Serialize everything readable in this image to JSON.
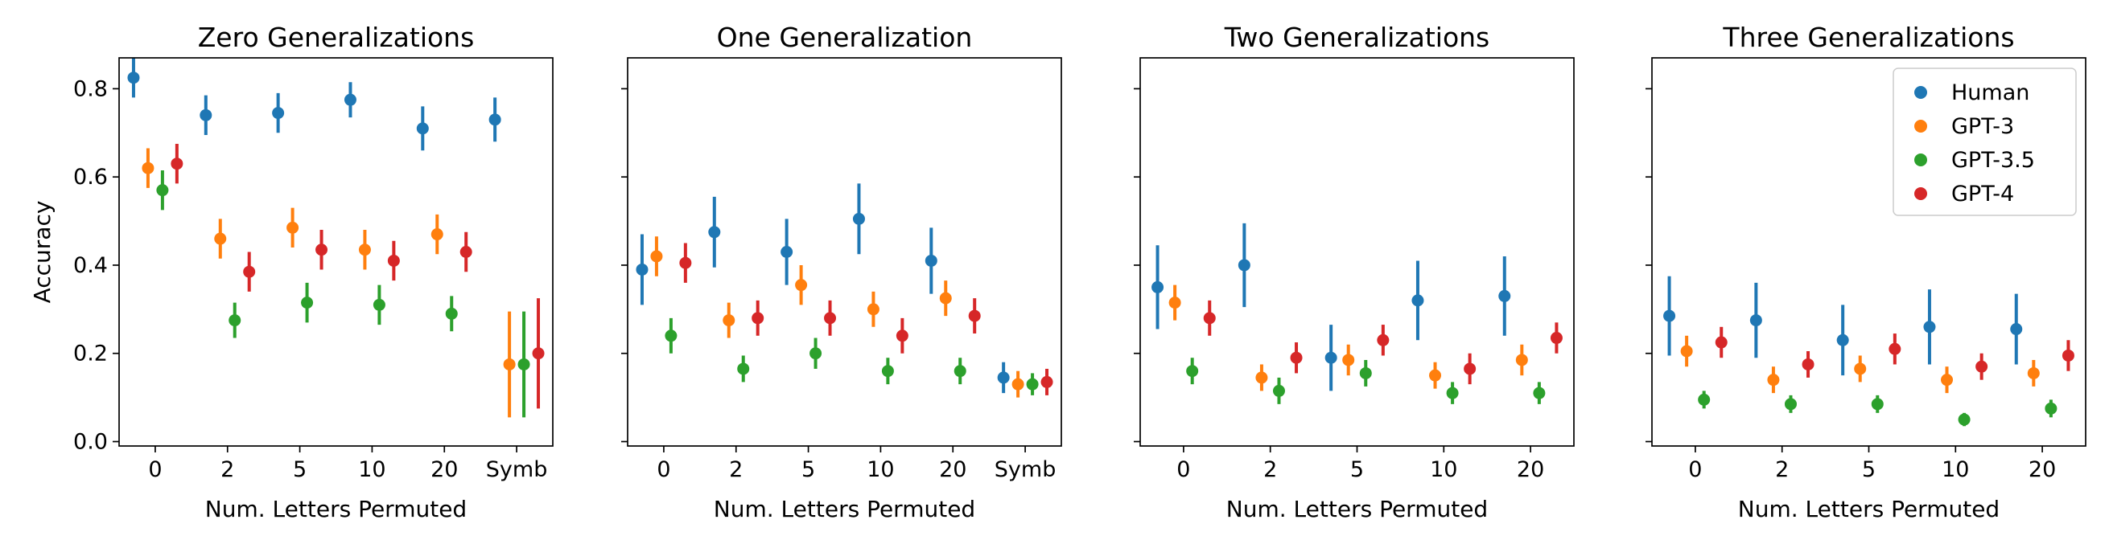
{
  "chart_data": [
    {
      "type": "scatter",
      "title": "Zero Generalizations",
      "xlabel": "Num. Letters Permuted",
      "ylabel": "Accuracy",
      "categories": [
        "0",
        "2",
        "5",
        "10",
        "20",
        "Symb"
      ],
      "ylim": [
        -0.01,
        0.87
      ],
      "yticks": [
        "0.0",
        "0.2",
        "0.4",
        "0.6",
        "0.8"
      ],
      "series": [
        {
          "name": "Human",
          "color": "#1f77b4",
          "values": [
            0.825,
            0.74,
            0.745,
            0.775,
            0.71,
            0.73
          ],
          "err": [
            0.045,
            0.045,
            0.045,
            0.04,
            0.05,
            0.05
          ]
        },
        {
          "name": "GPT-3",
          "color": "#ff7f0e",
          "values": [
            0.62,
            0.46,
            0.485,
            0.435,
            0.47,
            0.175
          ],
          "err": [
            0.045,
            0.045,
            0.045,
            0.045,
            0.045,
            0.12
          ]
        },
        {
          "name": "GPT-3.5",
          "color": "#2ca02c",
          "values": [
            0.57,
            0.275,
            0.315,
            0.31,
            0.29,
            0.175
          ],
          "err": [
            0.045,
            0.04,
            0.045,
            0.045,
            0.04,
            0.12
          ]
        },
        {
          "name": "GPT-4",
          "color": "#d62728",
          "values": [
            0.63,
            0.385,
            0.435,
            0.41,
            0.43,
            0.2
          ],
          "err": [
            0.045,
            0.045,
            0.045,
            0.045,
            0.045,
            0.125
          ]
        }
      ]
    },
    {
      "type": "scatter",
      "title": "One Generalization",
      "xlabel": "Num. Letters Permuted",
      "ylabel": "",
      "categories": [
        "0",
        "2",
        "5",
        "10",
        "20",
        "Symb"
      ],
      "ylim": [
        -0.01,
        0.87
      ],
      "yticks": [],
      "series": [
        {
          "name": "Human",
          "color": "#1f77b4",
          "values": [
            0.39,
            0.475,
            0.43,
            0.505,
            0.41,
            0.145
          ],
          "err": [
            0.08,
            0.08,
            0.075,
            0.08,
            0.075,
            0.035
          ]
        },
        {
          "name": "GPT-3",
          "color": "#ff7f0e",
          "values": [
            0.42,
            0.275,
            0.355,
            0.3,
            0.325,
            0.13
          ],
          "err": [
            0.045,
            0.04,
            0.045,
            0.04,
            0.04,
            0.03
          ]
        },
        {
          "name": "GPT-3.5",
          "color": "#2ca02c",
          "values": [
            0.24,
            0.165,
            0.2,
            0.16,
            0.16,
            0.13
          ],
          "err": [
            0.04,
            0.03,
            0.035,
            0.03,
            0.03,
            0.025
          ]
        },
        {
          "name": "GPT-4",
          "color": "#d62728",
          "values": [
            0.405,
            0.28,
            0.28,
            0.24,
            0.285,
            0.135
          ],
          "err": [
            0.045,
            0.04,
            0.04,
            0.04,
            0.04,
            0.03
          ]
        }
      ]
    },
    {
      "type": "scatter",
      "title": "Two Generalizations",
      "xlabel": "Num. Letters Permuted",
      "ylabel": "",
      "categories": [
        "0",
        "2",
        "5",
        "10",
        "20"
      ],
      "ylim": [
        -0.01,
        0.87
      ],
      "yticks": [],
      "series": [
        {
          "name": "Human",
          "color": "#1f77b4",
          "values": [
            0.35,
            0.4,
            0.19,
            0.32,
            0.33
          ],
          "err": [
            0.095,
            0.095,
            0.075,
            0.09,
            0.09
          ]
        },
        {
          "name": "GPT-3",
          "color": "#ff7f0e",
          "values": [
            0.315,
            0.145,
            0.185,
            0.15,
            0.185
          ],
          "err": [
            0.04,
            0.03,
            0.035,
            0.03,
            0.035
          ]
        },
        {
          "name": "GPT-3.5",
          "color": "#2ca02c",
          "values": [
            0.16,
            0.115,
            0.155,
            0.11,
            0.11
          ],
          "err": [
            0.03,
            0.03,
            0.03,
            0.025,
            0.025
          ]
        },
        {
          "name": "GPT-4",
          "color": "#d62728",
          "values": [
            0.28,
            0.19,
            0.23,
            0.165,
            0.235
          ],
          "err": [
            0.04,
            0.035,
            0.035,
            0.035,
            0.035
          ]
        }
      ]
    },
    {
      "type": "scatter",
      "title": "Three Generalizations",
      "xlabel": "Num. Letters Permuted",
      "ylabel": "",
      "categories": [
        "0",
        "2",
        "5",
        "10",
        "20"
      ],
      "ylim": [
        -0.01,
        0.87
      ],
      "yticks": [],
      "series": [
        {
          "name": "Human",
          "color": "#1f77b4",
          "values": [
            0.285,
            0.275,
            0.23,
            0.26,
            0.255
          ],
          "err": [
            0.09,
            0.085,
            0.08,
            0.085,
            0.08
          ]
        },
        {
          "name": "GPT-3",
          "color": "#ff7f0e",
          "values": [
            0.205,
            0.14,
            0.165,
            0.14,
            0.155
          ],
          "err": [
            0.035,
            0.03,
            0.03,
            0.03,
            0.03
          ]
        },
        {
          "name": "GPT-3.5",
          "color": "#2ca02c",
          "values": [
            0.095,
            0.085,
            0.085,
            0.05,
            0.075
          ],
          "err": [
            0.02,
            0.02,
            0.02,
            0.015,
            0.02
          ]
        },
        {
          "name": "GPT-4",
          "color": "#d62728",
          "values": [
            0.225,
            0.175,
            0.21,
            0.17,
            0.195
          ],
          "err": [
            0.035,
            0.03,
            0.035,
            0.03,
            0.035
          ]
        }
      ],
      "legend": "top-right"
    }
  ]
}
